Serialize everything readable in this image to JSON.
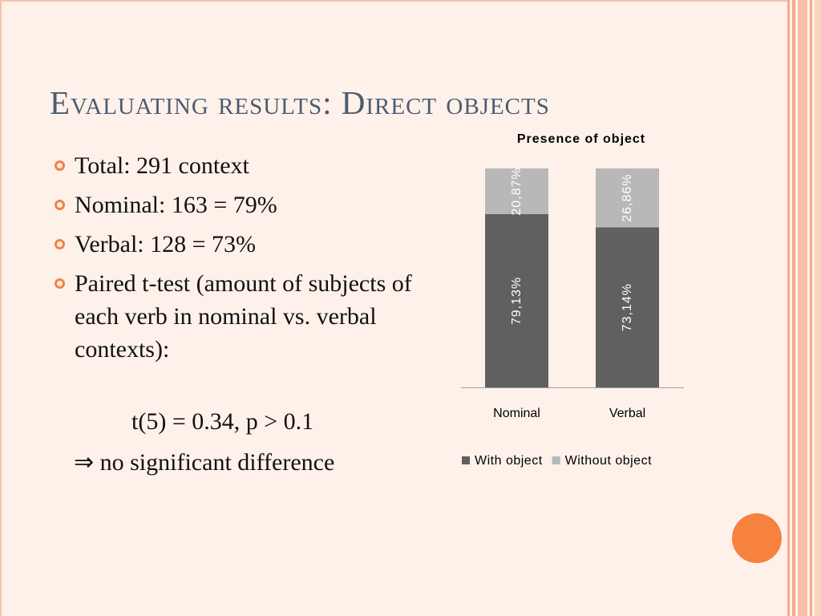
{
  "slide": {
    "title": "Evaluating results: Direct objects",
    "bullets": [
      "Total: 291 context",
      "Nominal: 163 = 79%",
      "Verbal: 128 = 73%",
      "Paired t-test (amount of subjects of each verb in nominal vs. verbal contexts):"
    ],
    "ttest_line": "t(5) = 0.34, p > 0.1",
    "conclusion_line": "⇒ no significant difference",
    "colors": {
      "title": "#4b5c70",
      "bullet": "#f4823f",
      "accent_circle": "#f7813f",
      "background": "#fdf1ea"
    }
  },
  "chart_data": {
    "type": "bar",
    "stacked": true,
    "title": "Presence of object",
    "categories": [
      "Nominal",
      "Verbal"
    ],
    "series": [
      {
        "name": "With object",
        "values": [
          79.13,
          73.14
        ],
        "labels": [
          "79,13%",
          "73,14%"
        ],
        "color": "#606060"
      },
      {
        "name": "Without object",
        "values": [
          20.87,
          26.86
        ],
        "labels": [
          "20,87%",
          "26,86%"
        ],
        "color": "#b8b8b8"
      }
    ],
    "ylim": [
      0,
      100
    ],
    "legend_position": "bottom",
    "grid": false
  }
}
